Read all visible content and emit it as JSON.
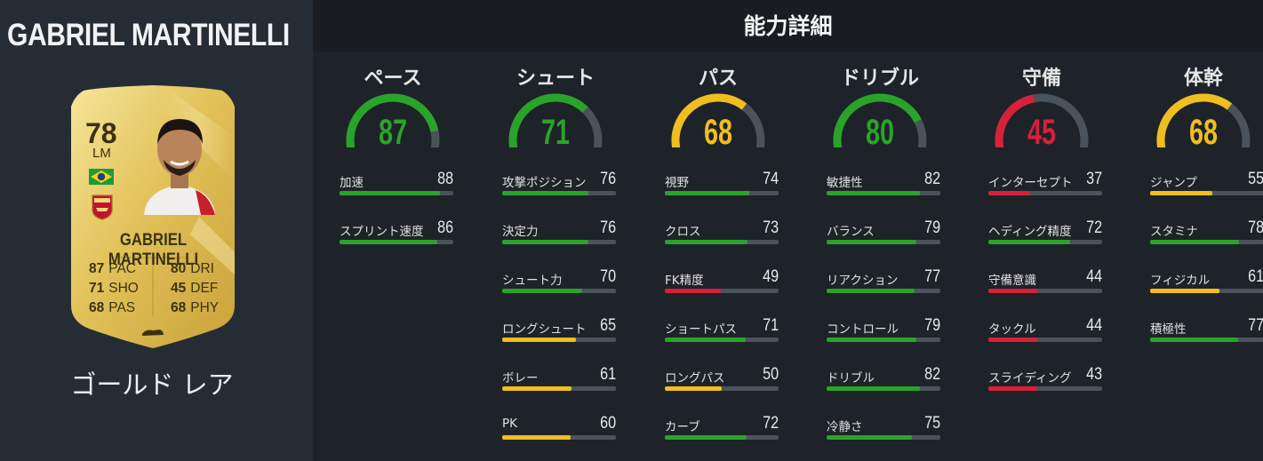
{
  "player": {
    "name": "GABRIEL MARTINELLI",
    "rarity": "ゴールド レア"
  },
  "card": {
    "rating": "78",
    "position": "LM",
    "name": "GABRIEL MARTINELLI",
    "stats": [
      {
        "value": "87",
        "abbr": "PAC"
      },
      {
        "value": "71",
        "abbr": "SHO"
      },
      {
        "value": "68",
        "abbr": "PAS"
      },
      {
        "value": "80",
        "abbr": "DRI"
      },
      {
        "value": "45",
        "abbr": "DEF"
      },
      {
        "value": "68",
        "abbr": "PHY"
      }
    ]
  },
  "panel_title": "能力詳細",
  "colors": {
    "green": "#2aa32a",
    "yellow": "#f0be1e",
    "red": "#d8203a",
    "track": "#4a525c"
  },
  "categories": [
    {
      "label": "ペース",
      "value": 87,
      "value_text": "87",
      "color": "green",
      "stats": [
        {
          "label": "加速",
          "value": 88,
          "value_text": "88"
        },
        {
          "label": "スプリント速度",
          "value": 86,
          "value_text": "86"
        }
      ]
    },
    {
      "label": "シュート",
      "value": 71,
      "value_text": "71",
      "color": "green",
      "stats": [
        {
          "label": "攻撃ポジション",
          "value": 76,
          "value_text": "76"
        },
        {
          "label": "決定力",
          "value": 76,
          "value_text": "76"
        },
        {
          "label": "シュート力",
          "value": 70,
          "value_text": "70"
        },
        {
          "label": "ロングシュート",
          "value": 65,
          "value_text": "65"
        },
        {
          "label": "ボレー",
          "value": 61,
          "value_text": "61"
        },
        {
          "label": "PK",
          "value": 60,
          "value_text": "60"
        }
      ]
    },
    {
      "label": "パス",
      "value": 68,
      "value_text": "68",
      "color": "yellow",
      "stats": [
        {
          "label": "視野",
          "value": 74,
          "value_text": "74"
        },
        {
          "label": "クロス",
          "value": 73,
          "value_text": "73"
        },
        {
          "label": "FK精度",
          "value": 49,
          "value_text": "49"
        },
        {
          "label": "ショートパス",
          "value": 71,
          "value_text": "71"
        },
        {
          "label": "ロングパス",
          "value": 50,
          "value_text": "50"
        },
        {
          "label": "カーブ",
          "value": 72,
          "value_text": "72"
        }
      ]
    },
    {
      "label": "ドリブル",
      "value": 80,
      "value_text": "80",
      "color": "green",
      "stats": [
        {
          "label": "敏捷性",
          "value": 82,
          "value_text": "82"
        },
        {
          "label": "バランス",
          "value": 79,
          "value_text": "79"
        },
        {
          "label": "リアクション",
          "value": 77,
          "value_text": "77"
        },
        {
          "label": "コントロール",
          "value": 79,
          "value_text": "79"
        },
        {
          "label": "ドリブル",
          "value": 82,
          "value_text": "82"
        },
        {
          "label": "冷静さ",
          "value": 75,
          "value_text": "75"
        }
      ]
    },
    {
      "label": "守備",
      "value": 45,
      "value_text": "45",
      "color": "red",
      "stats": [
        {
          "label": "インターセプト",
          "value": 37,
          "value_text": "37"
        },
        {
          "label": "ヘディング精度",
          "value": 72,
          "value_text": "72"
        },
        {
          "label": "守備意識",
          "value": 44,
          "value_text": "44"
        },
        {
          "label": "タックル",
          "value": 44,
          "value_text": "44"
        },
        {
          "label": "スライディング",
          "value": 43,
          "value_text": "43"
        }
      ]
    },
    {
      "label": "体幹",
      "value": 68,
      "value_text": "68",
      "color": "yellow",
      "stats": [
        {
          "label": "ジャンプ",
          "value": 55,
          "value_text": "55"
        },
        {
          "label": "スタミナ",
          "value": 78,
          "value_text": "78"
        },
        {
          "label": "フィジカル",
          "value": 61,
          "value_text": "61"
        },
        {
          "label": "積極性",
          "value": 77,
          "value_text": "77"
        }
      ]
    }
  ]
}
